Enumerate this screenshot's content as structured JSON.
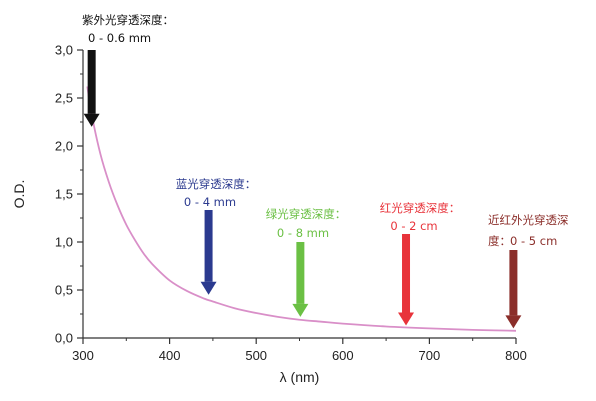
{
  "chart_data": {
    "type": "line",
    "title": "",
    "xlabel": "λ (nm)",
    "ylabel": "O.D.",
    "xlim": [
      300,
      800
    ],
    "ylim": [
      0,
      3.0
    ],
    "x_ticks": [
      300,
      400,
      500,
      600,
      700,
      800
    ],
    "y_ticks": [
      0,
      0.5,
      1.0,
      1.5,
      2.0,
      2.5,
      3.0
    ],
    "x_tick_labels": [
      "300",
      "400",
      "500",
      "600",
      "700",
      "800"
    ],
    "y_tick_labels": [
      "0,0",
      "0,5",
      "1,0",
      "1,5",
      "2,0",
      "2,5",
      "3,0"
    ],
    "grid": false,
    "line_color": "#d98fc8",
    "series": [
      {
        "x": [
          305,
          310,
          320,
          330,
          340,
          350,
          360,
          370,
          380,
          400,
          420,
          440,
          450,
          475,
          500,
          525,
          550,
          575,
          600,
          650,
          700,
          750,
          800
        ],
        "y": [
          2.62,
          2.33,
          1.92,
          1.62,
          1.38,
          1.18,
          1.02,
          0.88,
          0.77,
          0.6,
          0.49,
          0.41,
          0.38,
          0.31,
          0.26,
          0.22,
          0.19,
          0.17,
          0.15,
          0.12,
          0.1,
          0.085,
          0.075
        ]
      }
    ],
    "annotations": [
      {
        "id": "uv",
        "label": "紫外光穿透深度：",
        "value": "0 - 0.6 mm",
        "x": 310,
        "y": 2.2,
        "color": "#111111",
        "label_color": "#111111",
        "value_color": "#111111"
      },
      {
        "id": "blue",
        "label": "蓝光穿透深度：",
        "value": "0 - 4 mm",
        "x": 445,
        "y": 0.45,
        "color": "#2b3a8f",
        "label_color": "#2b3a8f",
        "value_color": "#2b3a8f"
      },
      {
        "id": "green",
        "label": "绿光穿透深度：",
        "value": "0 - 8 mm",
        "x": 551,
        "y": 0.22,
        "color": "#6bc044",
        "label_color": "#6bc044",
        "value_color": "#6bc044"
      },
      {
        "id": "red",
        "label": "红光穿透深度：",
        "value": "0 - 2 cm",
        "x": 673,
        "y": 0.13,
        "color": "#e8333a",
        "label_color": "#e8333a",
        "value_color": "#e8333a"
      },
      {
        "id": "nir",
        "label": "近红外光穿透深",
        "label2": "度：",
        "value": "0 - 5 cm",
        "x": 797,
        "y": 0.1,
        "color": "#8b2e2a",
        "label_color": "#8b2e2a",
        "value_color": "#8b2e2a"
      }
    ]
  }
}
